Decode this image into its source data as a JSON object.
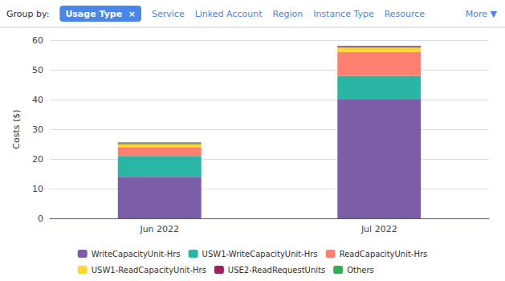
{
  "chart_data": {
    "type": "bar",
    "stacked": true,
    "categories": [
      "Jun 2022",
      "Jul 2022"
    ],
    "series": [
      {
        "name": "WriteCapacityUnit-Hrs",
        "color": "#7b5ea7",
        "values": [
          14,
          40
        ]
      },
      {
        "name": "USW1-WriteCapacityUnit-Hrs",
        "color": "#2ab5a5",
        "values": [
          7,
          8
        ]
      },
      {
        "name": "ReadCapacityUnit-Hrs",
        "color": "#ff8070",
        "values": [
          3,
          8
        ]
      },
      {
        "name": "USW1-ReadCapacityUnit-Hrs",
        "color": "#ffd633",
        "values": [
          1,
          1.5
        ]
      },
      {
        "name": "USE2-ReadRequestUnits",
        "color": "#9e2060",
        "values": [
          0.3,
          0.3
        ]
      },
      {
        "name": "Others",
        "color": "#3aaa55",
        "values": [
          0.3,
          0.3
        ]
      }
    ],
    "ylabel": "Costs ($)",
    "ylim": [
      0,
      60
    ],
    "yticks": [
      0,
      10,
      20,
      30,
      40,
      50,
      60
    ],
    "grid": true,
    "legend": "bottom",
    "annotations": [
      "Group by:",
      "Usage Type  ×",
      "Service",
      "Linked Account",
      "Region",
      "Instance Type",
      "Resource",
      "More ▼"
    ]
  }
}
